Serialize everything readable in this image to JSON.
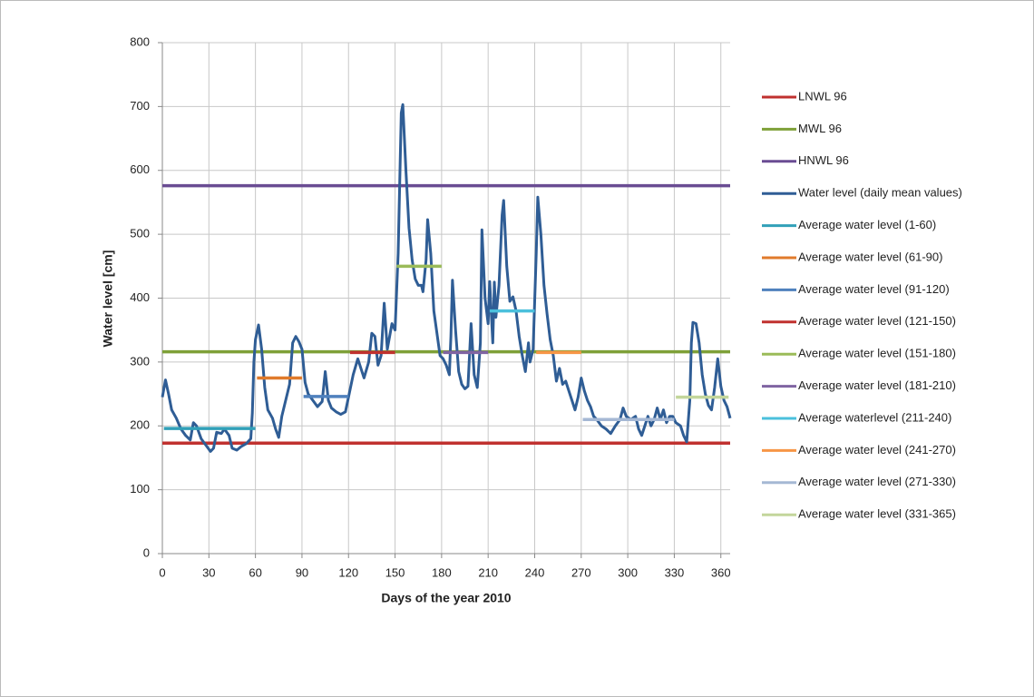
{
  "chart_data": {
    "type": "line",
    "x_label": "Days of the year 2010",
    "y_label": "Water level [cm]",
    "xlim": [
      0,
      366
    ],
    "ylim": [
      0,
      800
    ],
    "xticks": [
      0,
      30,
      60,
      90,
      120,
      150,
      180,
      210,
      240,
      270,
      300,
      330,
      360
    ],
    "yticks": [
      0,
      100,
      200,
      300,
      400,
      500,
      600,
      700,
      800
    ],
    "grid": true,
    "legend": "right",
    "series": [
      {
        "name": "LNWL 96",
        "color": "#c0312f",
        "x": [
          0,
          366
        ],
        "values": [
          173,
          173
        ]
      },
      {
        "name": "MWL 96",
        "color": "#7ea038",
        "x": [
          0,
          366
        ],
        "values": [
          316,
          316
        ]
      },
      {
        "name": "HNWL 96",
        "color": "#6a4c93",
        "x": [
          0,
          366
        ],
        "values": [
          576,
          576
        ]
      },
      {
        "name": "Water level (daily mean values)",
        "color": "#2f5d95",
        "x": [
          0,
          2,
          4,
          6,
          9,
          12,
          15,
          18,
          20,
          22,
          25,
          28,
          31,
          33,
          35,
          38,
          40,
          43,
          45,
          48,
          51,
          54,
          57,
          58,
          59,
          60,
          62,
          64,
          66,
          68,
          71,
          73,
          75,
          77,
          80,
          82,
          84,
          86,
          88,
          90,
          92,
          94,
          97,
          100,
          103,
          105,
          107,
          109,
          112,
          115,
          118,
          120,
          123,
          126,
          128,
          130,
          133,
          135,
          137,
          139,
          141,
          143,
          145,
          148,
          150,
          152,
          154,
          155,
          157,
          159,
          161,
          163,
          165,
          167,
          168,
          170,
          171,
          173,
          175,
          177,
          179,
          181,
          183,
          185,
          186,
          187,
          189,
          191,
          193,
          195,
          197,
          199,
          201,
          203,
          205,
          206,
          208,
          210,
          211,
          213,
          214,
          215,
          217,
          219,
          220,
          222,
          224,
          226,
          228,
          230,
          232,
          234,
          236,
          237,
          239,
          241,
          242,
          244,
          246,
          248,
          250,
          252,
          254,
          256,
          258,
          260,
          262,
          264,
          266,
          268,
          270,
          272,
          274,
          276,
          278,
          280,
          283,
          286,
          289,
          292,
          295,
          297,
          299,
          302,
          305,
          307,
          309,
          311,
          313,
          315,
          317,
          319,
          321,
          323,
          325,
          327,
          329,
          331,
          334,
          336,
          338,
          340,
          341,
          342,
          344,
          346,
          348,
          350,
          352,
          354,
          356,
          358,
          360,
          362,
          364,
          366
        ],
        "values": [
          245,
          272,
          250,
          225,
          212,
          195,
          185,
          178,
          205,
          200,
          180,
          170,
          160,
          165,
          190,
          188,
          195,
          185,
          165,
          162,
          168,
          172,
          180,
          220,
          300,
          335,
          358,
          320,
          260,
          225,
          212,
          195,
          182,
          215,
          245,
          265,
          330,
          340,
          332,
          320,
          268,
          250,
          240,
          230,
          238,
          285,
          240,
          228,
          222,
          218,
          222,
          245,
          280,
          305,
          290,
          275,
          300,
          345,
          340,
          295,
          310,
          392,
          320,
          360,
          350,
          470,
          690,
          703,
          600,
          510,
          460,
          430,
          420,
          420,
          410,
          460,
          523,
          470,
          380,
          345,
          310,
          305,
          295,
          280,
          340,
          428,
          350,
          285,
          265,
          258,
          262,
          360,
          280,
          260,
          330,
          507,
          400,
          360,
          426,
          330,
          425,
          370,
          420,
          530,
          553,
          450,
          395,
          402,
          380,
          340,
          310,
          285,
          330,
          300,
          320,
          470,
          558,
          500,
          420,
          375,
          335,
          310,
          270,
          290,
          265,
          270,
          255,
          240,
          225,
          245,
          275,
          255,
          240,
          230,
          215,
          210,
          200,
          195,
          188,
          200,
          210,
          228,
          215,
          210,
          215,
          195,
          185,
          200,
          215,
          200,
          210,
          228,
          210,
          225,
          205,
          215,
          215,
          205,
          200,
          185,
          175,
          240,
          330,
          362,
          360,
          330,
          280,
          250,
          232,
          225,
          260,
          305,
          262,
          240,
          230,
          212
        ]
      },
      {
        "name": "Average water level (1-60)",
        "color": "#31a0b8",
        "x": [
          1,
          60
        ],
        "values": [
          196,
          196
        ]
      },
      {
        "name": "Average water level (61-90)",
        "color": "#e07b2c",
        "x": [
          61,
          90
        ],
        "values": [
          275,
          275
        ]
      },
      {
        "name": "Average water level (91-120)",
        "color": "#4f81bd",
        "x": [
          91,
          120
        ],
        "values": [
          246,
          246
        ]
      },
      {
        "name": "Average water level (121-150)",
        "color": "#c0312f",
        "x": [
          121,
          150
        ],
        "values": [
          315,
          315
        ]
      },
      {
        "name": "Average water level (151-180)",
        "color": "#9bbb59",
        "x": [
          151,
          180
        ],
        "values": [
          450,
          450
        ]
      },
      {
        "name": "Average water level (181-210)",
        "color": "#8064a2",
        "x": [
          181,
          210
        ],
        "values": [
          315,
          315
        ]
      },
      {
        "name": "Average waterlevel (211-240)",
        "color": "#4bc0dc",
        "x": [
          211,
          240
        ],
        "values": [
          380,
          380
        ]
      },
      {
        "name": "Average water level (241-270)",
        "color": "#f79646",
        "x": [
          241,
          270
        ],
        "values": [
          315,
          315
        ]
      },
      {
        "name": "Average water level (271-330)",
        "color": "#a5b8d4",
        "x": [
          271,
          330
        ],
        "values": [
          210,
          210
        ]
      },
      {
        "name": "Average water level (331-365)",
        "color": "#c3d69b",
        "x": [
          331,
          365
        ],
        "values": [
          245,
          245
        ]
      }
    ]
  }
}
